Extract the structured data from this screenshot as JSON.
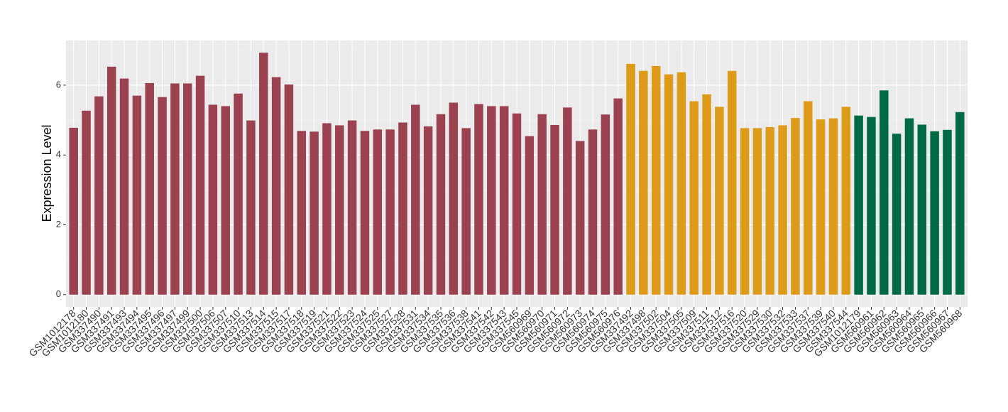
{
  "chart_data": {
    "type": "bar",
    "y_label": "Expression Level",
    "categories": [
      "GSM1012178",
      "GSM1012180",
      "GSM337490",
      "GSM337491",
      "GSM337493",
      "GSM337494",
      "GSM337495",
      "GSM337496",
      "GSM337497",
      "GSM337499",
      "GSM337500",
      "GSM337506",
      "GSM337507",
      "GSM337510",
      "GSM337513",
      "GSM337514",
      "GSM337515",
      "GSM337517",
      "GSM337518",
      "GSM337519",
      "GSM337521",
      "GSM337522",
      "GSM337523",
      "GSM337524",
      "GSM337525",
      "GSM337527",
      "GSM337528",
      "GSM337531",
      "GSM337534",
      "GSM337535",
      "GSM337536",
      "GSM337538",
      "GSM337541",
      "GSM337542",
      "GSM337543",
      "GSM337545",
      "GSM560969",
      "GSM560970",
      "GSM560971",
      "GSM560972",
      "GSM560973",
      "GSM560974",
      "GSM560975",
      "GSM560976",
      "GSM337492",
      "GSM337498",
      "GSM337502",
      "GSM337504",
      "GSM337505",
      "GSM337509",
      "GSM337511",
      "GSM337512",
      "GSM337516",
      "GSM337520",
      "GSM337529",
      "GSM337530",
      "GSM337532",
      "GSM337533",
      "GSM337537",
      "GSM337539",
      "GSM337540",
      "GSM337544",
      "GSM1012179",
      "GSM560961",
      "GSM560962",
      "GSM560963",
      "GSM560964",
      "GSM560965",
      "GSM560966",
      "GSM560967",
      "GSM560968"
    ],
    "values": [
      4.78,
      5.27,
      5.68,
      6.53,
      6.19,
      5.7,
      6.06,
      5.66,
      6.05,
      6.05,
      6.27,
      5.44,
      5.4,
      5.76,
      4.99,
      6.93,
      6.23,
      6.02,
      4.69,
      4.67,
      4.91,
      4.85,
      4.99,
      4.69,
      4.73,
      4.73,
      4.93,
      5.44,
      4.82,
      5.17,
      5.5,
      4.77,
      5.46,
      5.4,
      5.4,
      5.19,
      4.54,
      5.17,
      4.86,
      5.36,
      4.4,
      4.73,
      5.16,
      5.62,
      6.61,
      6.41,
      6.55,
      6.31,
      6.37,
      5.54,
      5.74,
      5.38,
      6.41,
      4.77,
      4.77,
      4.8,
      4.85,
      5.06,
      5.54,
      5.02,
      5.05,
      5.38,
      5.13,
      5.09,
      5.85,
      4.61,
      5.05,
      4.87,
      4.68,
      4.72,
      5.23
    ],
    "colors": [
      "#9b4150",
      "#9b4150",
      "#9b4150",
      "#9b4150",
      "#9b4150",
      "#9b4150",
      "#9b4150",
      "#9b4150",
      "#9b4150",
      "#9b4150",
      "#9b4150",
      "#9b4150",
      "#9b4150",
      "#9b4150",
      "#9b4150",
      "#9b4150",
      "#9b4150",
      "#9b4150",
      "#9b4150",
      "#9b4150",
      "#9b4150",
      "#9b4150",
      "#9b4150",
      "#9b4150",
      "#9b4150",
      "#9b4150",
      "#9b4150",
      "#9b4150",
      "#9b4150",
      "#9b4150",
      "#9b4150",
      "#9b4150",
      "#9b4150",
      "#9b4150",
      "#9b4150",
      "#9b4150",
      "#9b4150",
      "#9b4150",
      "#9b4150",
      "#9b4150",
      "#9b4150",
      "#9b4150",
      "#9b4150",
      "#9b4150",
      "#de9b1a",
      "#de9b1a",
      "#de9b1a",
      "#de9b1a",
      "#de9b1a",
      "#de9b1a",
      "#de9b1a",
      "#de9b1a",
      "#de9b1a",
      "#de9b1a",
      "#de9b1a",
      "#de9b1a",
      "#de9b1a",
      "#de9b1a",
      "#de9b1a",
      "#de9b1a",
      "#de9b1a",
      "#de9b1a",
      "#006a44",
      "#006a44",
      "#006a44",
      "#006a44",
      "#006a44",
      "#006a44",
      "#006a44",
      "#006a44",
      "#006a44"
    ],
    "ylim": [
      -0.35,
      7.28
    ],
    "yticks": [
      0,
      2,
      4,
      6
    ],
    "grid": true
  }
}
